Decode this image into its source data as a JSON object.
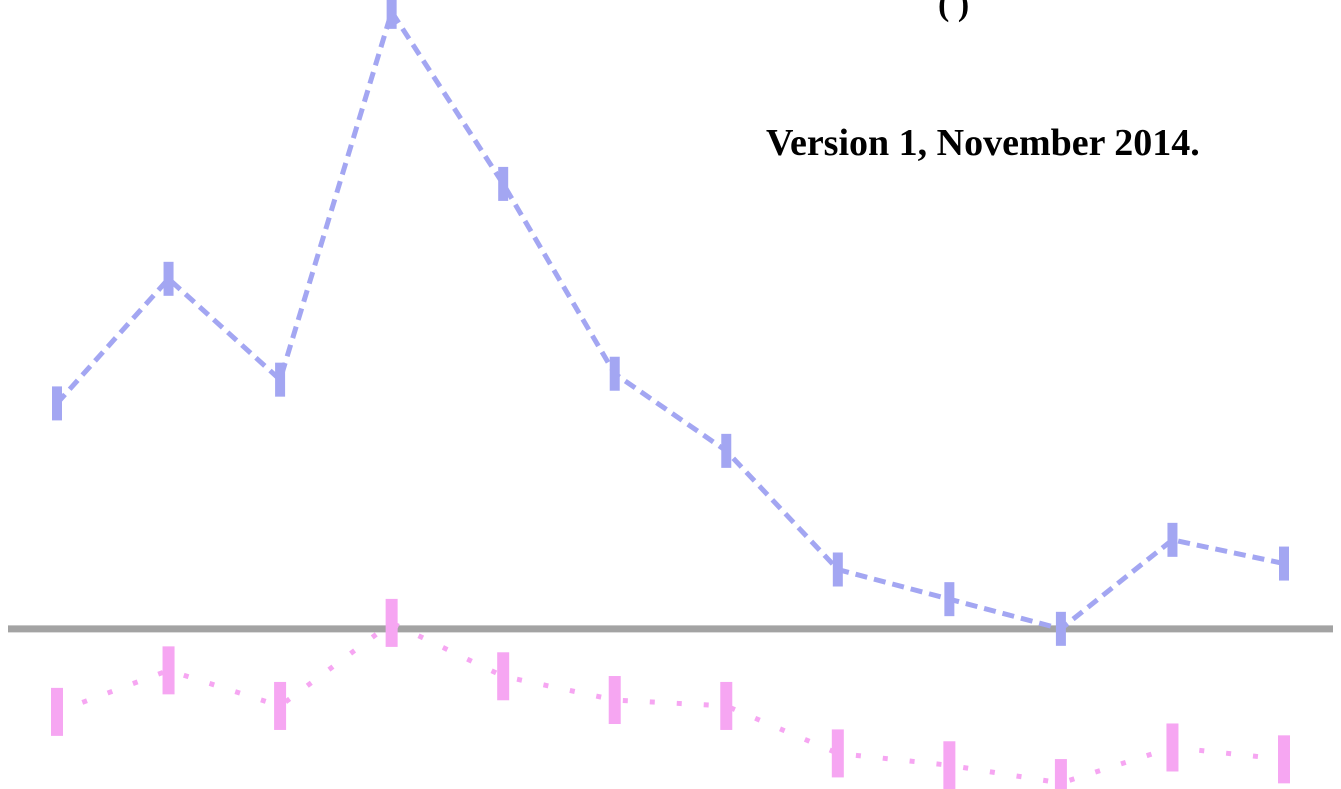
{
  "header": {
    "top_fragment": "(                )",
    "version_note": "Version 1, November 2014."
  },
  "chart_data": {
    "type": "line",
    "title": "",
    "xlabel": "",
    "ylabel": "",
    "grid": false,
    "x": [
      1,
      2,
      3,
      4,
      5,
      6,
      7,
      8,
      9,
      10,
      11,
      12
    ],
    "ylim": [
      -1.35,
      5.3
    ],
    "baseline": 0,
    "series": [
      {
        "name": "",
        "style": "solid",
        "color": "#a3a6f2",
        "values": [
          1.9,
          2.95,
          2.1,
          5.2,
          3.75,
          2.15,
          1.5,
          0.5,
          0.25,
          0.0,
          0.75,
          0.55
        ]
      },
      {
        "name": "",
        "style": "dotted",
        "color": "#f6a6f2",
        "values": [
          -0.7,
          -0.35,
          -0.65,
          0.05,
          -0.4,
          -0.6,
          -0.65,
          -1.05,
          -1.15,
          -1.3,
          -1.0,
          -1.1
        ]
      }
    ],
    "colors": {
      "baseline": "#a3a3a3"
    }
  }
}
